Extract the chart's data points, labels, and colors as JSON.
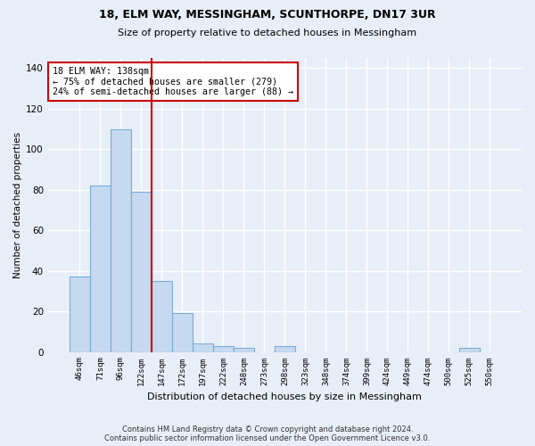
{
  "title1": "18, ELM WAY, MESSINGHAM, SCUNTHORPE, DN17 3UR",
  "title2": "Size of property relative to detached houses in Messingham",
  "xlabel": "Distribution of detached houses by size in Messingham",
  "ylabel": "Number of detached properties",
  "categories": [
    "46sqm",
    "71sqm",
    "96sqm",
    "122sqm",
    "147sqm",
    "172sqm",
    "197sqm",
    "222sqm",
    "248sqm",
    "273sqm",
    "298sqm",
    "323sqm",
    "348sqm",
    "374sqm",
    "399sqm",
    "424sqm",
    "449sqm",
    "474sqm",
    "500sqm",
    "525sqm",
    "550sqm"
  ],
  "values": [
    37,
    82,
    110,
    79,
    35,
    19,
    4,
    3,
    2,
    0,
    3,
    0,
    0,
    0,
    0,
    0,
    0,
    0,
    0,
    2,
    0
  ],
  "bar_color": "#c5d9f0",
  "bar_edge_color": "#7aadd4",
  "vline_x": 3.5,
  "vline_color": "#cc0000",
  "annotation_text": "18 ELM WAY: 138sqm\n← 75% of detached houses are smaller (279)\n24% of semi-detached houses are larger (88) →",
  "annotation_box_color": "#ffffff",
  "annotation_box_edge_color": "#cc0000",
  "ylim": [
    0,
    145
  ],
  "yticks": [
    0,
    20,
    40,
    60,
    80,
    100,
    120,
    140
  ],
  "footer1": "Contains HM Land Registry data © Crown copyright and database right 2024.",
  "footer2": "Contains public sector information licensed under the Open Government Licence v3.0.",
  "bg_color": "#e8eef8",
  "plot_bg_color": "#e8eef8",
  "title_fontsize": 9,
  "subtitle_fontsize": 8,
  "xlabel_fontsize": 8,
  "ylabel_fontsize": 7.5
}
